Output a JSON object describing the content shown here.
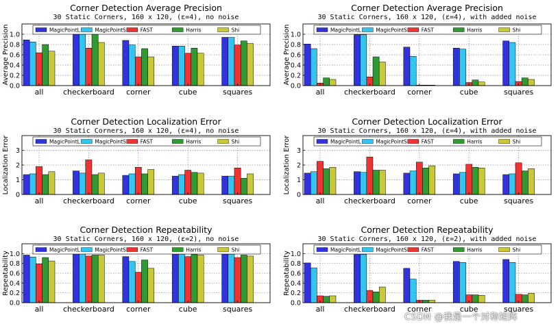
{
  "colors": {
    "MagicPointL": "#3333dd",
    "MagicPointS": "#33c4f0",
    "FAST": "#ee3333",
    "Harris": "#339933",
    "Shi": "#c8c83a",
    "grid": "#888888",
    "axis": "#000000"
  },
  "watermark": "CSDN @我是一个对称矩阵",
  "chart_data": [
    {
      "type": "bar",
      "title": "Corner Detection Average Precision",
      "subtitle": "30 Static Corners, 160 x 120, (ε=4), no noise",
      "ylabel": "Average Precision",
      "ylim": [
        0,
        1.2
      ],
      "yticks": [
        "0.0",
        "0.2",
        "0.4",
        "0.6",
        "0.8",
        "1.0"
      ],
      "categories": [
        "all",
        "checkerboard",
        "corner",
        "cube",
        "squares"
      ],
      "series": [
        {
          "name": "MagicPointL",
          "values": [
            0.89,
            1.0,
            0.88,
            0.77,
            0.94
          ]
        },
        {
          "name": "MagicPointS",
          "values": [
            0.85,
            1.0,
            0.79,
            0.77,
            0.94
          ]
        },
        {
          "name": "FAST",
          "values": [
            0.64,
            0.73,
            0.56,
            0.63,
            0.79
          ]
        },
        {
          "name": "Harris",
          "values": [
            0.8,
            1.0,
            0.72,
            0.73,
            0.87
          ]
        },
        {
          "name": "Shi",
          "values": [
            0.67,
            0.84,
            0.56,
            0.63,
            0.82
          ]
        }
      ]
    },
    {
      "type": "bar",
      "title": "Corner Detection Average Precision",
      "subtitle": "30 Static Corners, 160 x 120, (ε=4), with added noise",
      "ylabel": "Average Precision",
      "ylim": [
        0,
        1.2
      ],
      "yticks": [
        "0.0",
        "0.2",
        "0.4",
        "0.6",
        "0.8",
        "1.0"
      ],
      "categories": [
        "all",
        "checkerboard",
        "corner",
        "cube",
        "squares"
      ],
      "series": [
        {
          "name": "MagicPointL",
          "values": [
            0.81,
            0.99,
            0.75,
            0.73,
            0.87
          ]
        },
        {
          "name": "MagicPointS",
          "values": [
            0.72,
            0.99,
            0.57,
            0.71,
            0.84
          ]
        },
        {
          "name": "FAST",
          "values": [
            0.05,
            0.17,
            0.01,
            0.06,
            0.08
          ]
        },
        {
          "name": "Harris",
          "values": [
            0.15,
            0.56,
            0.01,
            0.11,
            0.15
          ]
        },
        {
          "name": "Shi",
          "values": [
            0.12,
            0.46,
            0.01,
            0.07,
            0.12
          ]
        }
      ]
    },
    {
      "type": "bar",
      "title": "Corner Detection Localization Error",
      "subtitle": "30 Static Corners, 160 x 120, (ε=4), no noise",
      "ylabel": "Localization Error",
      "ylim": [
        0,
        4
      ],
      "yticks": [
        "0",
        "1",
        "2",
        "3"
      ],
      "categories": [
        "all",
        "checkerboard",
        "corner",
        "cube",
        "squares"
      ],
      "series": [
        {
          "name": "MagicPointL",
          "values": [
            1.35,
            1.6,
            1.3,
            1.25,
            1.25
          ]
        },
        {
          "name": "MagicPointS",
          "values": [
            1.4,
            1.45,
            1.4,
            1.35,
            1.25
          ]
        },
        {
          "name": "FAST",
          "values": [
            1.9,
            2.35,
            1.85,
            1.65,
            1.8
          ]
        },
        {
          "name": "Harris",
          "values": [
            1.35,
            1.35,
            1.4,
            1.5,
            1.1
          ]
        },
        {
          "name": "Shi",
          "values": [
            1.55,
            1.45,
            1.7,
            1.45,
            1.4
          ]
        }
      ]
    },
    {
      "type": "bar",
      "title": "Corner Detection Localization Error",
      "subtitle": "30 Static Corners, 160 x 120, (ε=4), with added noise",
      "ylabel": "Localization Error",
      "ylim": [
        0,
        4
      ],
      "yticks": [
        "0",
        "1",
        "2",
        "3"
      ],
      "categories": [
        "all",
        "checkerboard",
        "corner",
        "cube",
        "squares"
      ],
      "series": [
        {
          "name": "MagicPointL",
          "values": [
            1.45,
            1.55,
            1.45,
            1.4,
            1.35
          ]
        },
        {
          "name": "MagicPointS",
          "values": [
            1.55,
            1.5,
            1.6,
            1.5,
            1.4
          ]
        },
        {
          "name": "FAST",
          "values": [
            2.25,
            2.55,
            2.2,
            2.05,
            2.15
          ]
        },
        {
          "name": "Harris",
          "values": [
            1.75,
            1.65,
            1.8,
            1.85,
            1.6
          ]
        },
        {
          "name": "Shi",
          "values": [
            1.85,
            1.65,
            1.95,
            1.8,
            1.75
          ]
        }
      ]
    },
    {
      "type": "bar",
      "title": "Corner Detection Repeatability",
      "subtitle": "30 Static Corners, 160 x 120, (ε=2), no noise",
      "ylabel": "Repeatability",
      "ylim": [
        0,
        1.2
      ],
      "yticks": [
        "0.0",
        "0.2",
        "0.4",
        "0.6",
        "0.8",
        "1.0"
      ],
      "categories": [
        "all",
        "checkerboard",
        "corner",
        "cube",
        "squares"
      ],
      "series": [
        {
          "name": "MagicPointL",
          "values": [
            0.97,
            1.0,
            0.94,
            0.99,
            0.99
          ]
        },
        {
          "name": "MagicPointS",
          "values": [
            0.93,
            1.0,
            0.84,
            0.99,
            0.99
          ]
        },
        {
          "name": "FAST",
          "values": [
            0.79,
            0.95,
            0.62,
            0.94,
            0.92
          ]
        },
        {
          "name": "Harris",
          "values": [
            0.92,
            0.97,
            0.87,
            0.98,
            0.97
          ]
        },
        {
          "name": "Shi",
          "values": [
            0.85,
            0.97,
            0.7,
            0.97,
            0.95
          ]
        }
      ]
    },
    {
      "type": "bar",
      "title": "Corner Detection Repeatability",
      "subtitle": "30 Static Corners, 160 x 120, (ε=2), with added noise",
      "ylabel": "Repeatability",
      "ylim": [
        0,
        1.2
      ],
      "yticks": [
        "0.0",
        "0.2",
        "0.4",
        "0.6",
        "0.8",
        "1.0"
      ],
      "categories": [
        "all",
        "checkerboard",
        "corner",
        "cube",
        "squares"
      ],
      "series": [
        {
          "name": "MagicPointL",
          "values": [
            0.81,
            0.98,
            0.7,
            0.84,
            0.88
          ]
        },
        {
          "name": "MagicPointS",
          "values": [
            0.71,
            0.98,
            0.48,
            0.82,
            0.82
          ]
        },
        {
          "name": "FAST",
          "values": [
            0.14,
            0.25,
            0.05,
            0.16,
            0.17
          ]
        },
        {
          "name": "Harris",
          "values": [
            0.13,
            0.22,
            0.05,
            0.16,
            0.16
          ]
        },
        {
          "name": "Shi",
          "values": [
            0.14,
            0.32,
            0.05,
            0.15,
            0.19
          ]
        }
      ]
    }
  ]
}
